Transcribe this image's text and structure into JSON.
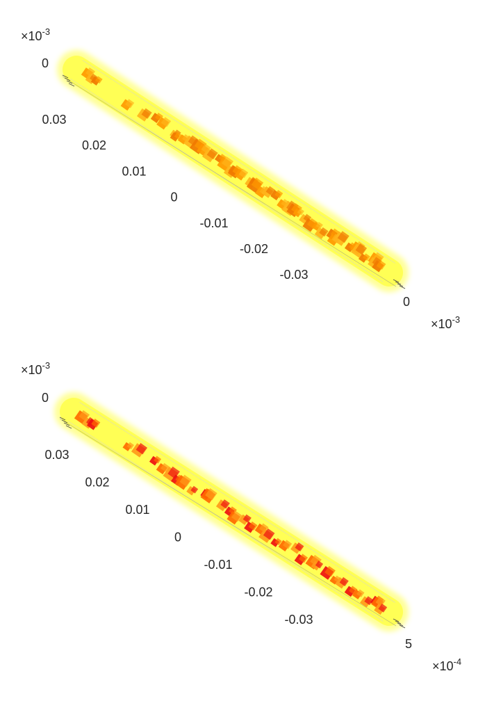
{
  "chart_data": [
    {
      "type": "scatter",
      "title": "",
      "xlabel": "",
      "ylabel": "",
      "zlabel": "",
      "axis_ticks": [
        "0.03",
        "0.02",
        "0.01",
        "0",
        "-0.01",
        "-0.02",
        "-0.03"
      ],
      "axis_range": [
        -0.038,
        0.038
      ],
      "top_tick": "0",
      "top_multiplier": {
        "base": "×10",
        "exp": "-3"
      },
      "end_tick": "0",
      "end_multiplier": {
        "base": "×10",
        "exp": "-3"
      },
      "point_values": [
        0.0355,
        0.0345,
        0.034,
        0.0255,
        0.021,
        0.019,
        0.017,
        0.015,
        0.014,
        0.012,
        0.01,
        0.0085,
        0.007,
        0.0055,
        0.004,
        0.002,
        0.0005,
        -0.001,
        -0.0025,
        -0.004,
        -0.0055,
        -0.007,
        -0.0085,
        -0.01,
        -0.0115,
        -0.013,
        -0.0145,
        -0.016,
        -0.0175,
        -0.019,
        -0.0205,
        -0.022,
        -0.0235,
        -0.025,
        -0.0265,
        -0.028,
        -0.0295,
        -0.031,
        -0.0325,
        -0.034,
        -0.035,
        -0.036
      ],
      "colors": {
        "halo": "#ffff40",
        "point_main": "#ff9900",
        "point_light": "#ffb31a",
        "point_dark": "#f07800"
      }
    },
    {
      "type": "scatter",
      "title": "",
      "xlabel": "",
      "ylabel": "",
      "zlabel": "",
      "axis_ticks": [
        "0.03",
        "0.02",
        "0.01",
        "0",
        "-0.01",
        "-0.02",
        "-0.03"
      ],
      "axis_range": [
        -0.038,
        0.038
      ],
      "top_tick": "0",
      "top_multiplier": {
        "base": "×10",
        "exp": "-3"
      },
      "end_tick": "5",
      "end_multiplier": {
        "base": "×10",
        "exp": "-4"
      },
      "point_values": [
        0.0355,
        0.0345,
        0.034,
        0.0255,
        0.0225,
        0.019,
        0.017,
        0.015,
        0.013,
        0.011,
        0.009,
        0.007,
        0.005,
        0.003,
        0.001,
        -0.001,
        -0.003,
        -0.005,
        -0.007,
        -0.009,
        -0.011,
        -0.013,
        -0.015,
        -0.017,
        -0.019,
        -0.021,
        -0.023,
        -0.025,
        -0.027,
        -0.029,
        -0.031,
        -0.033,
        -0.0345,
        -0.0355,
        -0.036
      ],
      "colors": {
        "halo": "#ffff40",
        "point_main": "#ff6a00",
        "point_light": "#ff9a1a",
        "point_dark": "#ee1010"
      }
    }
  ]
}
